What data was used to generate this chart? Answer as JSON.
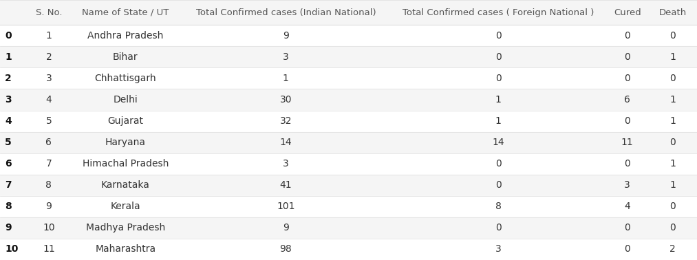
{
  "columns": [
    "S. No.",
    "Name of State / UT",
    "Total Confirmed cases (Indian National)",
    "Total Confirmed cases ( Foreign National )",
    "Cured",
    "Death"
  ],
  "index": [
    0,
    1,
    2,
    3,
    4,
    5,
    6,
    7,
    8,
    9,
    10
  ],
  "s_no": [
    1,
    2,
    3,
    4,
    5,
    6,
    7,
    8,
    9,
    10,
    11
  ],
  "state": [
    "Andhra Pradesh",
    "Bihar",
    "Chhattisgarh",
    "Delhi",
    "Gujarat",
    "Haryana",
    "Himachal Pradesh",
    "Karnataka",
    "Kerala",
    "Madhya Pradesh",
    "Maharashtra"
  ],
  "indian_national": [
    9,
    3,
    1,
    30,
    32,
    14,
    3,
    41,
    101,
    9,
    98
  ],
  "foreign_national": [
    0,
    0,
    0,
    1,
    1,
    14,
    0,
    0,
    8,
    0,
    3
  ],
  "cured": [
    0,
    0,
    0,
    6,
    0,
    11,
    0,
    3,
    4,
    0,
    0
  ],
  "death": [
    0,
    1,
    0,
    1,
    1,
    0,
    1,
    1,
    0,
    0,
    2
  ],
  "header_bg": "#f5f5f5",
  "row_even_bg": "#ffffff",
  "row_odd_bg": "#f5f5f5",
  "header_text_color": "#555555",
  "row_text_color": "#333333",
  "index_bold_color": "#111111",
  "line_color": "#dddddd",
  "fig_bg": "#ffffff",
  "header_fontsize": 9.5,
  "cell_fontsize": 10,
  "index_fontsize": 10
}
